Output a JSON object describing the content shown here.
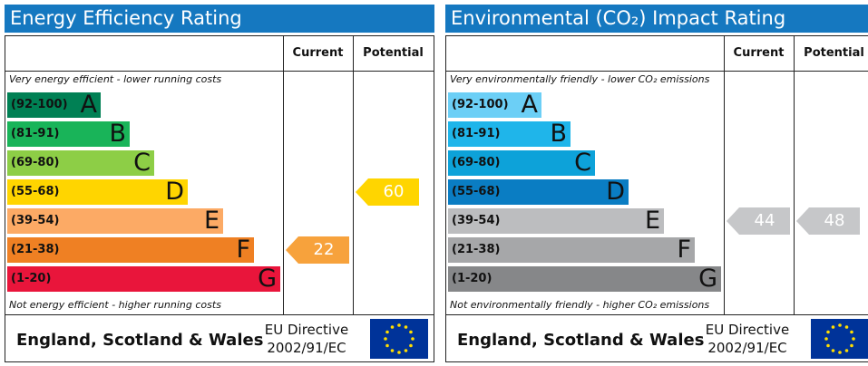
{
  "chart_data": [
    {
      "type": "bar",
      "title": "Energy Efficiency Rating",
      "title_color": "#1578c0",
      "columns": [
        "Current",
        "Potential"
      ],
      "caption_top": "Very energy efficient - lower running costs",
      "caption_bottom": "Not energy efficient - higher running costs",
      "bands": [
        {
          "range": "(92-100)",
          "letter": "A",
          "color": "#008054"
        },
        {
          "range": "(81-91)",
          "letter": "B",
          "color": "#19b459"
        },
        {
          "range": "(69-80)",
          "letter": "C",
          "color": "#8dce46"
        },
        {
          "range": "(55-68)",
          "letter": "D",
          "color": "#ffd500"
        },
        {
          "range": "(39-54)",
          "letter": "E",
          "color": "#fcaa65"
        },
        {
          "range": "(21-38)",
          "letter": "F",
          "color": "#ef8023"
        },
        {
          "range": "(1-20)",
          "letter": "G",
          "color": "#e9153b"
        }
      ],
      "current": {
        "value": 22,
        "label": "22",
        "color": "#f7a23c"
      },
      "potential": {
        "value": 60,
        "label": "60",
        "color": "#ffd500"
      },
      "footer": {
        "country": "England, Scotland & Wales",
        "directive_line1": "EU Directive",
        "directive_line2": "2002/91/EC"
      }
    },
    {
      "type": "bar",
      "title": "Environmental (CO₂) Impact Rating",
      "title_color": "#1578c0",
      "columns": [
        "Current",
        "Potential"
      ],
      "caption_top": "Very environmentally friendly - lower CO₂ emissions",
      "caption_bottom": "Not environmentally friendly - higher CO₂ emissions",
      "bands": [
        {
          "range": "(92-100)",
          "letter": "A",
          "color": "#6ccff6"
        },
        {
          "range": "(81-91)",
          "letter": "B",
          "color": "#1fb5ea"
        },
        {
          "range": "(69-80)",
          "letter": "C",
          "color": "#0da2d9"
        },
        {
          "range": "(55-68)",
          "letter": "D",
          "color": "#0a7dc3"
        },
        {
          "range": "(39-54)",
          "letter": "E",
          "color": "#bcbdbf"
        },
        {
          "range": "(21-38)",
          "letter": "F",
          "color": "#a6a7a9"
        },
        {
          "range": "(1-20)",
          "letter": "G",
          "color": "#868789"
        }
      ],
      "current": {
        "value": 44,
        "label": "44",
        "color": "#c6c7c9"
      },
      "potential": {
        "value": 48,
        "label": "48",
        "color": "#c6c7c9"
      },
      "footer": {
        "country": "England, Scotland & Wales",
        "directive_line1": "EU Directive",
        "directive_line2": "2002/91/EC"
      }
    }
  ]
}
